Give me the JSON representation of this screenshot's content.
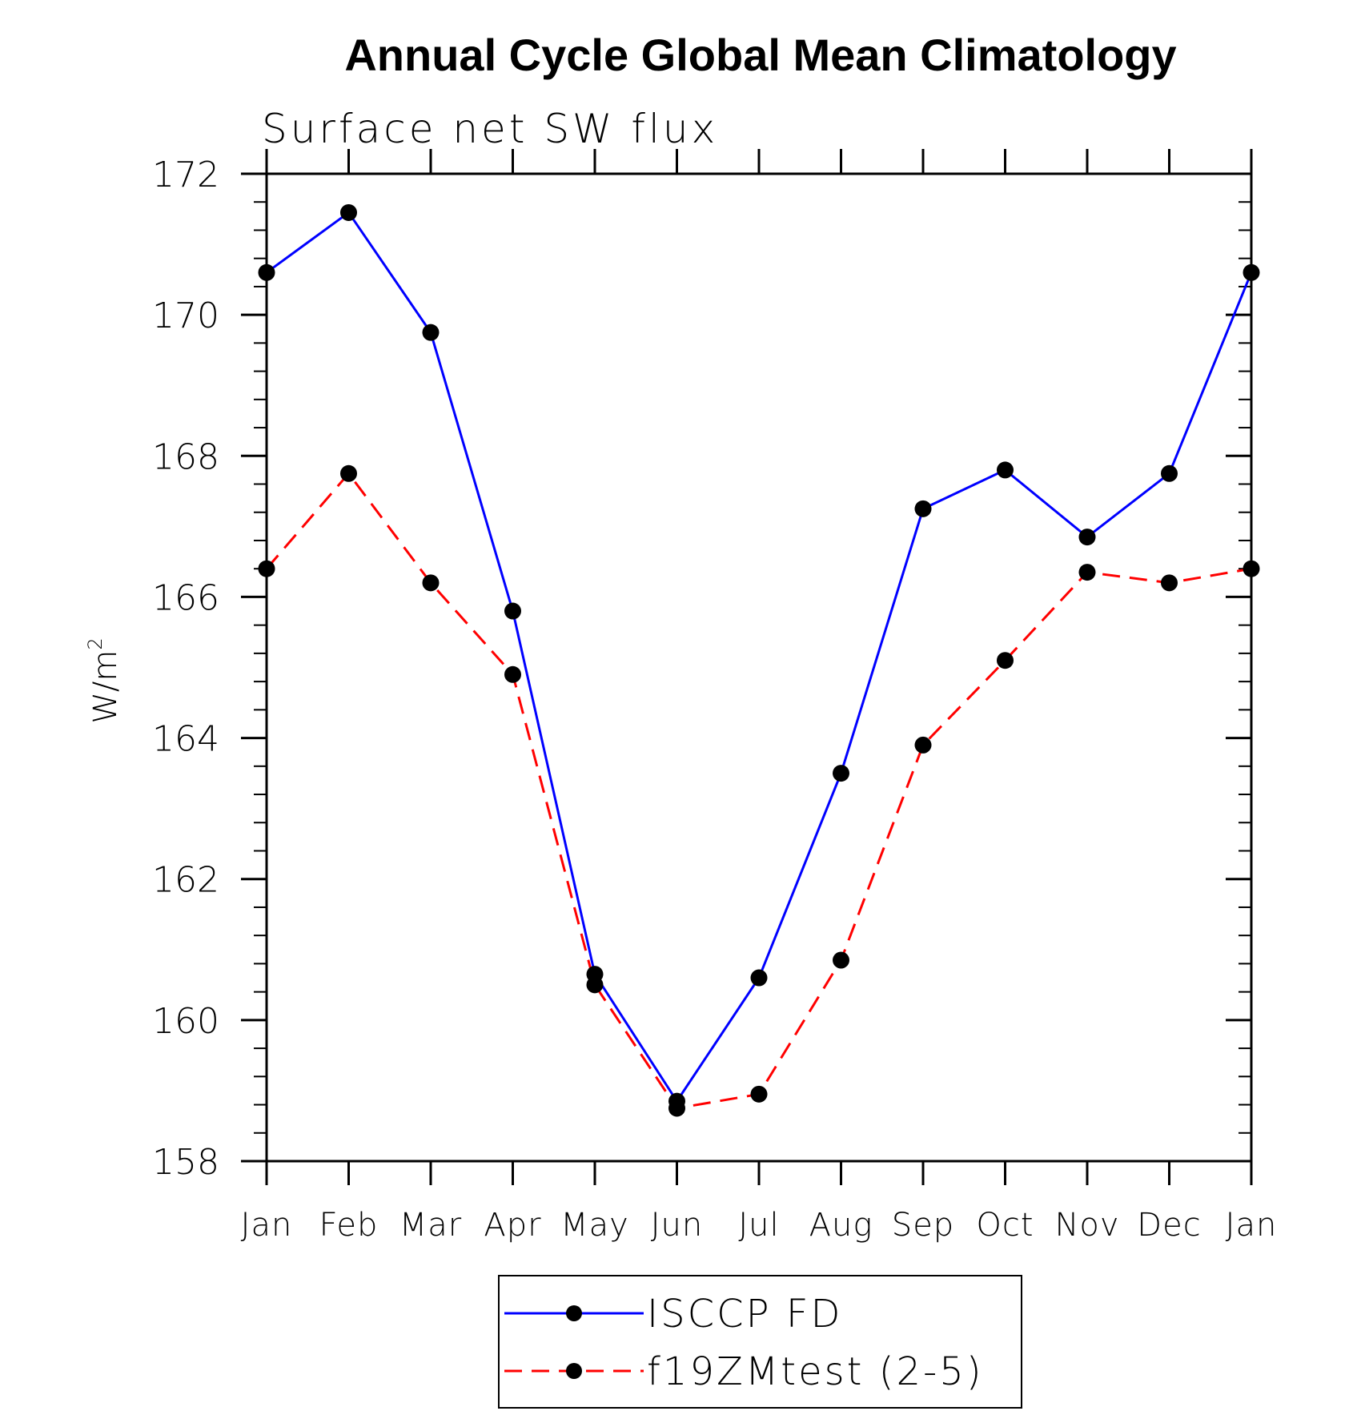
{
  "chart_data": {
    "type": "line",
    "title": "Annual Cycle Global Mean Climatology",
    "subtitle": "Surface net SW flux",
    "ylabel": "W/m",
    "ylabel_superscript": "2",
    "xlabel": "",
    "categories": [
      "Jan",
      "Feb",
      "Mar",
      "Apr",
      "May",
      "Jun",
      "Jul",
      "Aug",
      "Sep",
      "Oct",
      "Nov",
      "Dec",
      "Jan"
    ],
    "ylim": [
      158,
      172
    ],
    "yticks": [
      "158",
      "160",
      "162",
      "164",
      "166",
      "168",
      "170",
      "172"
    ],
    "legend_position": "bottom-center",
    "series": [
      {
        "name": "ISCCP FD",
        "color": "#0000ff",
        "line_style": "solid",
        "marker": "filled-circle",
        "values": [
          170.6,
          171.45,
          169.75,
          165.8,
          160.65,
          158.85,
          160.6,
          163.5,
          167.25,
          167.8,
          166.85,
          167.75,
          170.6
        ]
      },
      {
        "name": "f19ZMtest (2-5)",
        "color": "#ff0000",
        "line_style": "dashed",
        "marker": "filled-circle",
        "values": [
          166.4,
          167.75,
          166.2,
          164.9,
          160.5,
          158.75,
          158.95,
          160.85,
          163.9,
          165.1,
          166.35,
          166.2,
          166.4
        ]
      }
    ]
  }
}
